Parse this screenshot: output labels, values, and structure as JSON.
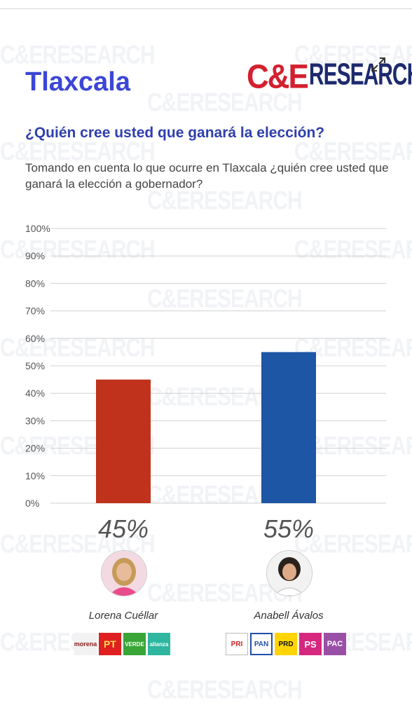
{
  "header": {
    "state_title": "Tlaxcala",
    "logo_part1": "C&E",
    "logo_part2": "RESEARCH",
    "question": "¿Quién cree usted que ganará la elección?",
    "subtitle": "Tomando en cuenta lo que ocurre en Tlaxcala ¿quién cree usted que ganará la elección a gobernador?"
  },
  "watermark_text": "C&ERESEARCH",
  "candidates": [
    {
      "name": "Lorena Cuéllar",
      "parties": [
        "morena",
        "PT",
        "VERDE",
        "alianza"
      ]
    },
    {
      "name": "Anabell Ávalos",
      "parties": [
        "PRI",
        "PAN",
        "PRD",
        "PS",
        "PAC"
      ]
    }
  ],
  "chart_data": {
    "type": "bar",
    "categories": [
      "Lorena Cuéllar",
      "Anabell Ávalos"
    ],
    "values": [
      45,
      55
    ],
    "value_labels": [
      "45%",
      "55%"
    ],
    "colors": [
      "#c0321c",
      "#1c56a4"
    ],
    "ylim": [
      0,
      100
    ],
    "yticks": [
      "0%",
      "10%",
      "20%",
      "30%",
      "40%",
      "50%",
      "60%",
      "70%",
      "80%",
      "90%",
      "100%"
    ],
    "grid": true
  }
}
